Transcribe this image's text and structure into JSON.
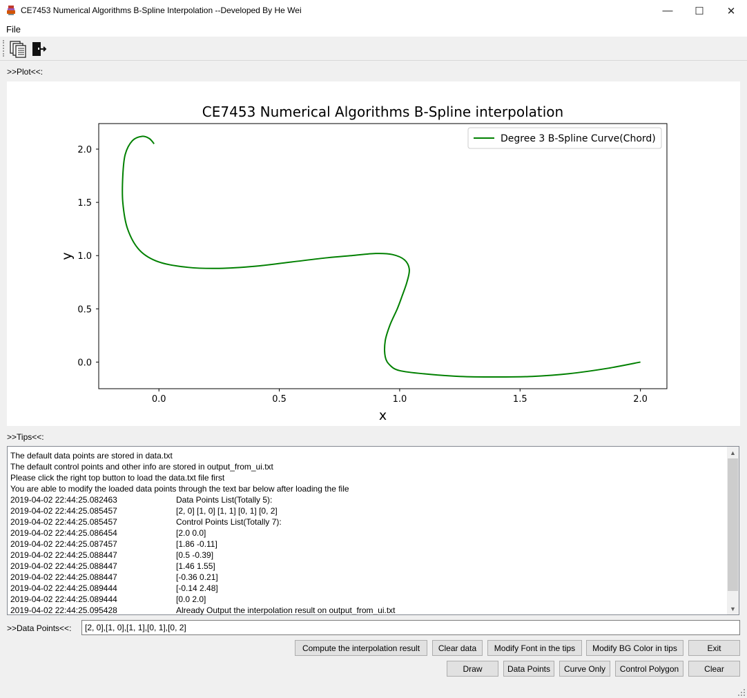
{
  "window": {
    "title": "CE7453 Numerical Algorithms B-Spline Interpolation --Developed By He Wei",
    "minimize_glyph": "—",
    "maximize_glyph": "☐",
    "close_glyph": "✕"
  },
  "menu": {
    "file_label": "File"
  },
  "toolbar": {
    "icons": [
      "load-data-icon",
      "exit-door-icon"
    ]
  },
  "sections": {
    "plot_label": ">>Plot<<:",
    "tips_label": ">>Tips<<:"
  },
  "chart_data": {
    "type": "line",
    "title": "CE7453 Numerical Algorithms B-Spline interpolation",
    "xlabel": "x",
    "ylabel": "y",
    "xlim": [
      -0.25,
      2.11
    ],
    "ylim": [
      -0.25,
      2.24
    ],
    "xticks": [
      0.0,
      0.5,
      1.0,
      1.5,
      2.0
    ],
    "xtick_labels": [
      "0.0",
      "0.5",
      "1.0",
      "1.5",
      "2.0"
    ],
    "yticks": [
      0.0,
      0.5,
      1.0,
      1.5,
      2.0
    ],
    "ytick_labels": [
      "0.0",
      "0.5",
      "1.0",
      "1.5",
      "2.0"
    ],
    "legend_position": "top-right",
    "series": [
      {
        "name": "Degree 3 B-Spline Curve(Chord)",
        "color": "#008000",
        "points": [
          [
            2.0,
            0.0
          ],
          [
            1.86,
            -0.06
          ],
          [
            1.7,
            -0.11
          ],
          [
            1.55,
            -0.135
          ],
          [
            1.4,
            -0.14
          ],
          [
            1.25,
            -0.135
          ],
          [
            1.1,
            -0.11
          ],
          [
            1.0,
            -0.08
          ],
          [
            0.96,
            -0.03
          ],
          [
            0.94,
            0.05
          ],
          [
            0.94,
            0.2
          ],
          [
            0.96,
            0.35
          ],
          [
            0.99,
            0.5
          ],
          [
            1.01,
            0.62
          ],
          [
            1.03,
            0.75
          ],
          [
            1.04,
            0.87
          ],
          [
            1.02,
            0.96
          ],
          [
            0.97,
            1.01
          ],
          [
            0.9,
            1.02
          ],
          [
            0.8,
            1.0
          ],
          [
            0.7,
            0.98
          ],
          [
            0.55,
            0.94
          ],
          [
            0.4,
            0.9
          ],
          [
            0.25,
            0.88
          ],
          [
            0.12,
            0.89
          ],
          [
            0.0,
            0.94
          ],
          [
            -0.08,
            1.05
          ],
          [
            -0.13,
            1.25
          ],
          [
            -0.15,
            1.5
          ],
          [
            -0.15,
            1.75
          ],
          [
            -0.14,
            1.95
          ],
          [
            -0.11,
            2.08
          ],
          [
            -0.07,
            2.12
          ],
          [
            -0.04,
            2.1
          ],
          [
            -0.02,
            2.05
          ]
        ]
      }
    ]
  },
  "tips": [
    {
      "ts": "The default data points are stored in data.txt",
      "msg": ""
    },
    {
      "ts": "The default control points and other info are stored in output_from_ui.txt",
      "msg": ""
    },
    {
      "ts": "Please click the right top button to load the data.txt file first",
      "msg": ""
    },
    {
      "ts": "You are able to modify the loaded data points through the text bar below after loading the file",
      "msg": ""
    },
    {
      "ts": "2019-04-02 22:44:25.082463",
      "msg": "Data Points List(Totally 5):"
    },
    {
      "ts": "2019-04-02 22:44:25.085457",
      "msg": "[2, 0] [1, 0] [1, 1] [0, 1] [0, 2]"
    },
    {
      "ts": "2019-04-02 22:44:25.085457",
      "msg": "Control Points List(Totally 7):"
    },
    {
      "ts": "2019-04-02 22:44:25.086454",
      "msg": "[2.0 0.0]"
    },
    {
      "ts": "2019-04-02 22:44:25.087457",
      "msg": "[1.86 -0.11]"
    },
    {
      "ts": "2019-04-02 22:44:25.088447",
      "msg": "[0.5 -0.39]"
    },
    {
      "ts": "2019-04-02 22:44:25.088447",
      "msg": "[1.46 1.55]"
    },
    {
      "ts": "2019-04-02 22:44:25.088447",
      "msg": "[-0.36 0.21]"
    },
    {
      "ts": "2019-04-02 22:44:25.089444",
      "msg": "[-0.14 2.48]"
    },
    {
      "ts": "2019-04-02 22:44:25.089444",
      "msg": "[0.0 2.0]"
    },
    {
      "ts": "2019-04-02 22:44:25.095428",
      "msg": "Already Output the interpolation result on output_from_ui.txt"
    }
  ],
  "scrollbar": {
    "up_glyph": "▲",
    "down_glyph": "▼"
  },
  "data_points": {
    "label": ">>Data Points<<:",
    "value": "[2, 0],[1, 0],[1, 1],[0, 1],[0, 2]"
  },
  "buttons": {
    "compute": "Compute the interpolation result",
    "clear_data": "Clear data",
    "modify_font": "Modify Font in the tips",
    "modify_bg": "Modify BG Color in tips",
    "exit": "Exit",
    "draw": "Draw",
    "data_points": "Data Points",
    "curve_only": "Curve Only",
    "control_polygon": "Control Polygon",
    "clear": "Clear"
  }
}
